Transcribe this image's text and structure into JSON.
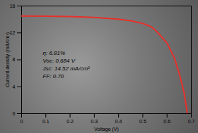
{
  "chart_data": {
    "type": "line",
    "x_label": "Voltage (V)",
    "y_label": "Current density (mA/cm²)",
    "x": [
      0,
      0.1,
      0.2,
      0.3,
      0.4,
      0.45,
      0.5,
      0.53,
      0.55,
      0.6,
      0.63,
      0.65,
      0.67,
      0.684
    ],
    "values": [
      14.52,
      14.48,
      14.42,
      14.3,
      14.05,
      13.8,
      13.4,
      13.0,
      12.5,
      10.5,
      8.3,
      6.0,
      3.2,
      0
    ],
    "color": "#e8302a",
    "xlim": [
      0,
      0.7
    ],
    "xticks": [
      0,
      0.1,
      0.2,
      0.3,
      0.4,
      0.5,
      0.6,
      0.7
    ],
    "ylim": [
      0,
      16
    ],
    "yticks": [
      0,
      4,
      8,
      12,
      16
    ],
    "annotations": [
      "η: 6.81%",
      "Voc: 0.684 V",
      "Jsc: 14.52 mA/cm²",
      "FF: 0.70"
    ]
  }
}
